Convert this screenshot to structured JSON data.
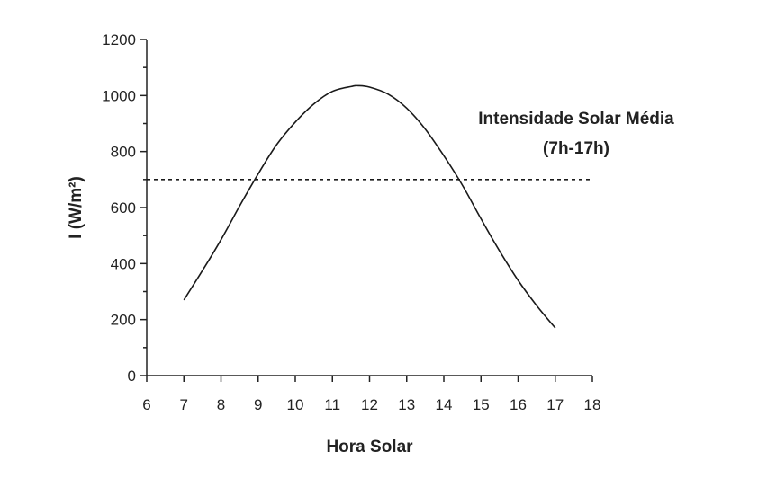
{
  "chart_data": {
    "type": "line",
    "xlabel": "Hora Solar",
    "ylabel": "I (W/m²)",
    "xlim": [
      6,
      18
    ],
    "ylim": [
      0,
      1200
    ],
    "x_ticks": [
      6,
      7,
      8,
      9,
      10,
      11,
      12,
      13,
      14,
      15,
      16,
      17,
      18
    ],
    "y_ticks": [
      0,
      200,
      400,
      600,
      800,
      1000,
      1200
    ],
    "grid": false,
    "series": [
      {
        "style": "solid",
        "color": "#1a1a1a",
        "x": [
          7,
          7.5,
          8,
          8.5,
          9,
          9.5,
          10,
          10.5,
          11,
          11.5,
          11.7,
          12,
          12.5,
          13,
          13.5,
          14,
          14.5,
          15,
          15.5,
          16,
          16.5,
          17
        ],
        "y": [
          270,
          375,
          485,
          605,
          720,
          825,
          905,
          970,
          1015,
          1032,
          1035,
          1030,
          1005,
          955,
          880,
          785,
          680,
          560,
          445,
          340,
          250,
          170
        ]
      },
      {
        "style": "dashed",
        "color": "#1a1a1a",
        "x": [
          6,
          18
        ],
        "y": [
          700,
          700
        ]
      }
    ],
    "annotations": [
      {
        "line1": "Intensidade Solar Média",
        "line2": "(7h-17h)",
        "x": 14.5,
        "y": 900
      }
    ]
  }
}
